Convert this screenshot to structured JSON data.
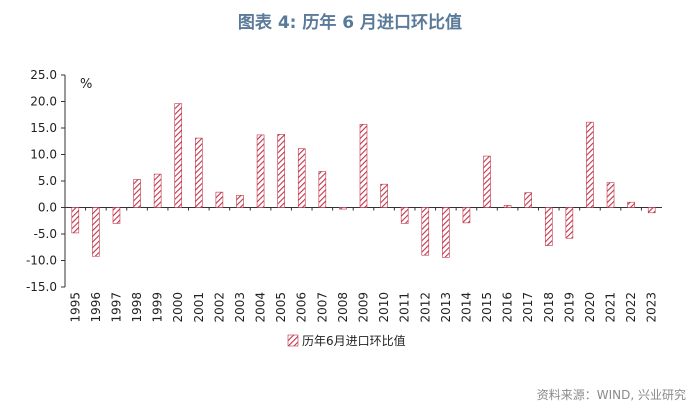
{
  "title": "图表 4:  历年 6 月进口环比值",
  "source": "资料来源：WIND, 兴业研究",
  "colors": {
    "bar": "#c0364a",
    "title": "#5a7a9a"
  },
  "chart_data": {
    "type": "bar",
    "unit_label": "%",
    "categories": [
      "1995",
      "1996",
      "1997",
      "1998",
      "1999",
      "2000",
      "2001",
      "2002",
      "2003",
      "2004",
      "2005",
      "2006",
      "2007",
      "2008",
      "2009",
      "2010",
      "2011",
      "2012",
      "2013",
      "2014",
      "2015",
      "2016",
      "2017",
      "2018",
      "2019",
      "2020",
      "2021",
      "2022",
      "2023"
    ],
    "series": [
      {
        "name": "历年6月进口环比值",
        "values": [
          -4.8,
          -9.2,
          -3.0,
          5.3,
          6.3,
          19.6,
          13.1,
          2.9,
          2.3,
          13.7,
          13.8,
          11.1,
          6.8,
          -0.3,
          15.7,
          4.4,
          -3.0,
          -9.0,
          -9.4,
          -2.9,
          9.7,
          0.4,
          2.8,
          -7.2,
          -5.8,
          16.1,
          4.7,
          1.0,
          -1.0
        ]
      }
    ],
    "ylim": [
      -15.0,
      25.0
    ],
    "yticks": [
      "25.0",
      "20.0",
      "15.0",
      "10.0",
      "5.0",
      "0.0",
      "-5.0",
      "-10.0",
      "-15.0"
    ],
    "ytick_values": [
      25,
      20,
      15,
      10,
      5,
      0,
      -5,
      -10,
      -15
    ],
    "legend_position": "bottom-center",
    "grid": false
  }
}
